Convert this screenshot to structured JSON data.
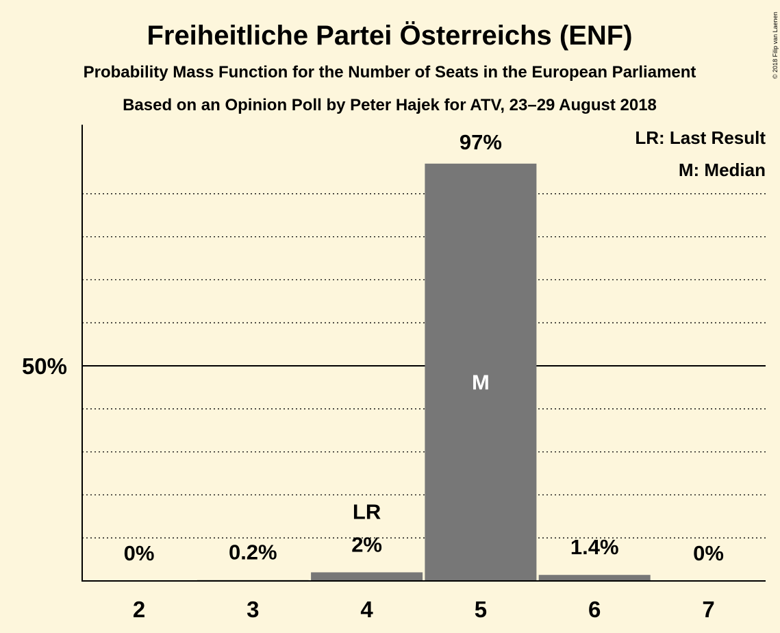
{
  "chart_data": {
    "type": "bar",
    "title": "Freiheitliche Partei Österreichs (ENF)",
    "subtitle": "Probability Mass Function for the Number of Seats in the European Parliament",
    "subtitle2": "Based on an Opinion Poll by Peter Hajek for ATV, 23–29 August 2018",
    "copyright": "© 2018 Filip van Laenen",
    "categories": [
      "2",
      "3",
      "4",
      "5",
      "6",
      "7"
    ],
    "values": [
      0,
      0.2,
      2,
      97,
      1.4,
      0
    ],
    "value_labels": [
      "0%",
      "0.2%",
      "2%",
      "97%",
      "1.4%",
      "0%"
    ],
    "markers": [
      {
        "category": "4",
        "text": "LR",
        "meaning": "Last Result"
      },
      {
        "category": "5",
        "text": "M",
        "meaning": "Median"
      }
    ],
    "legend": [
      "LR: Last Result",
      "M: Median"
    ],
    "legend_position": "top-right",
    "ytick_label": "50%",
    "ytick_value": 50,
    "ylim": [
      0,
      105
    ],
    "gridlines": [
      10,
      20,
      30,
      40,
      60,
      70,
      80,
      90
    ],
    "colors": {
      "background": "#fdf6dc",
      "bar": "#777777",
      "median_text": "#ffffff",
      "text": "#000000"
    }
  }
}
